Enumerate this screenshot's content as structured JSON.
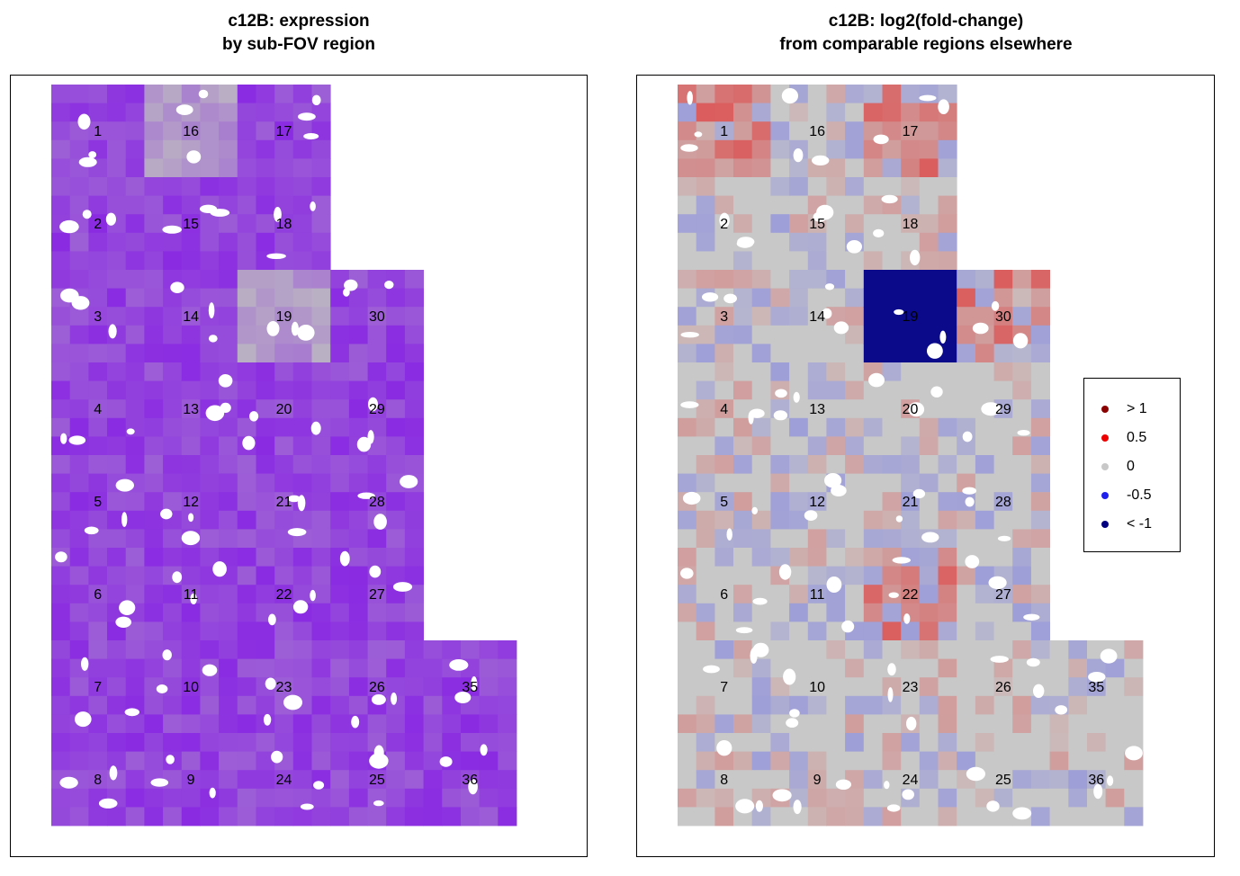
{
  "chart_data": [
    {
      "type": "heatmap",
      "title": "c12B: expression\nby sub-FOV region",
      "title_lines": [
        "c12B: expression",
        "by sub-FOV region"
      ],
      "regions": [
        "1",
        "2",
        "3",
        "4",
        "5",
        "6",
        "7",
        "8",
        "9",
        "10",
        "11",
        "12",
        "13",
        "14",
        "15",
        "16",
        "17",
        "18",
        "19",
        "20",
        "21",
        "22",
        "23",
        "24",
        "25",
        "26",
        "27",
        "28",
        "29",
        "30",
        "35",
        "36"
      ],
      "region_grid": [
        [
          "1",
          "16",
          "17",
          "",
          "",
          ""
        ],
        [
          "2",
          "15",
          "18",
          "",
          "",
          ""
        ],
        [
          "3",
          "14",
          "19",
          "30",
          "",
          ""
        ],
        [
          "4",
          "13",
          "20",
          "29",
          "",
          ""
        ],
        [
          "5",
          "12",
          "21",
          "28",
          "",
          ""
        ],
        [
          "6",
          "11",
          "22",
          "27",
          "",
          ""
        ],
        [
          "7",
          "10",
          "23",
          "26",
          "35",
          ""
        ],
        [
          "8",
          "9",
          "24",
          "25",
          "36",
          ""
        ]
      ],
      "low_expression_regions": [
        "16",
        "19"
      ],
      "colors": {
        "high": "#8a2be2",
        "low": "#c0c0c0"
      }
    },
    {
      "type": "heatmap",
      "title": "c12B: log2(fold-change)\nfrom comparable regions elsewhere",
      "title_lines": [
        "c12B: log2(fold-change)",
        "from comparable regions elsewhere"
      ],
      "regions": [
        "1",
        "2",
        "3",
        "4",
        "5",
        "6",
        "7",
        "8",
        "9",
        "10",
        "11",
        "12",
        "13",
        "14",
        "15",
        "16",
        "17",
        "18",
        "19",
        "20",
        "21",
        "22",
        "23",
        "24",
        "25",
        "26",
        "27",
        "28",
        "29",
        "30",
        "35",
        "36"
      ],
      "region_grid": [
        [
          "1",
          "16",
          "17",
          "",
          "",
          ""
        ],
        [
          "2",
          "15",
          "18",
          "",
          "",
          ""
        ],
        [
          "3",
          "14",
          "19",
          "30",
          "",
          ""
        ],
        [
          "4",
          "13",
          "20",
          "29",
          "",
          ""
        ],
        [
          "5",
          "12",
          "21",
          "28",
          "",
          ""
        ],
        [
          "6",
          "11",
          "22",
          "27",
          "",
          ""
        ],
        [
          "7",
          "10",
          "23",
          "26",
          "35",
          ""
        ],
        [
          "8",
          "9",
          "24",
          "25",
          "36",
          ""
        ]
      ],
      "legend": [
        {
          "label": "> 1",
          "color": "#8b0000"
        },
        {
          "label": "0.5",
          "color": "#ee0000"
        },
        {
          "label": "0",
          "color": "#c8c8c8"
        },
        {
          "label": "-0.5",
          "color": "#2020ee"
        },
        {
          "label": "< -1",
          "color": "#000080"
        }
      ],
      "strong_negative_regions": [
        "19"
      ],
      "positive_regions": [
        "1",
        "17",
        "22",
        "30"
      ]
    }
  ]
}
